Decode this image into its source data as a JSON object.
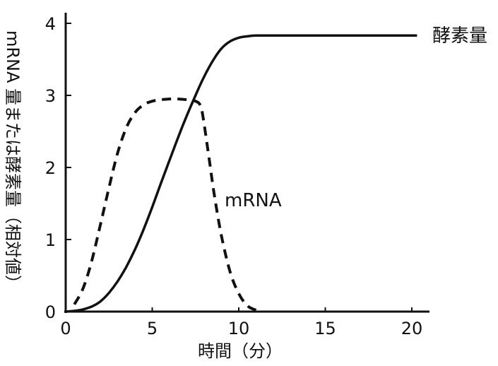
{
  "chart_data": {
    "type": "line",
    "title": "",
    "xlabel": "時間（分）",
    "ylabel": "mRNA 量または酵素量（相対値）",
    "xlim": [
      0,
      21
    ],
    "ylim": [
      0,
      4.2
    ],
    "x_ticks": [
      "0",
      "5",
      "10",
      "15",
      "20"
    ],
    "y_ticks": [
      "0",
      "1",
      "2",
      "3",
      "4"
    ],
    "grid": false,
    "series": [
      {
        "name": "酵素量",
        "style": "solid",
        "color": "#111111",
        "x": [
          0,
          0.5,
          1,
          1.5,
          2,
          2.5,
          3,
          3.5,
          4,
          4.5,
          5,
          5.5,
          6,
          6.5,
          7,
          7.5,
          8,
          8.5,
          9,
          9.5,
          10,
          10.5,
          11,
          12,
          14,
          16,
          18,
          20.3
        ],
        "y": [
          0,
          0.01,
          0.03,
          0.07,
          0.14,
          0.26,
          0.42,
          0.62,
          0.86,
          1.14,
          1.45,
          1.78,
          2.1,
          2.42,
          2.72,
          3.0,
          3.26,
          3.48,
          3.65,
          3.75,
          3.8,
          3.82,
          3.83,
          3.83,
          3.83,
          3.83,
          3.83,
          3.83
        ]
      },
      {
        "name": "mRNA",
        "style": "dashed",
        "color": "#111111",
        "x": [
          0.5,
          1,
          1.5,
          2,
          2.5,
          3,
          3.5,
          4,
          4.5,
          5,
          5.5,
          6,
          6.5,
          7,
          7.5,
          7.8,
          8,
          8.3,
          8.6,
          9,
          9.5,
          10,
          10.5,
          11
        ],
        "y": [
          0.1,
          0.32,
          0.7,
          1.2,
          1.72,
          2.2,
          2.55,
          2.76,
          2.87,
          2.92,
          2.94,
          2.95,
          2.95,
          2.94,
          2.92,
          2.85,
          2.6,
          2.1,
          1.6,
          1.05,
          0.55,
          0.25,
          0.08,
          0.02
        ]
      }
    ]
  }
}
